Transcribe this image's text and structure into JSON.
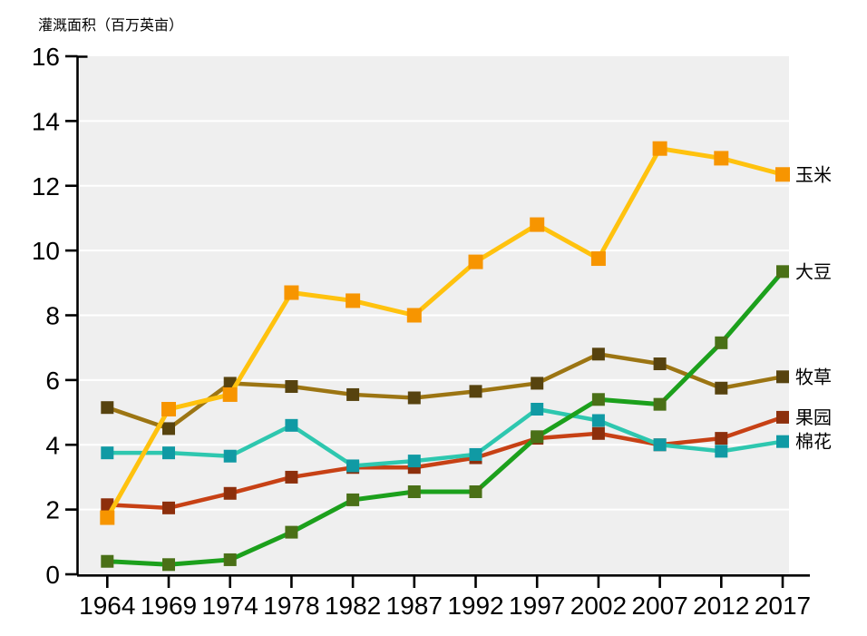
{
  "chart_data": {
    "type": "line",
    "title": "灌溉面积（百万英亩）",
    "xlabel": "",
    "ylabel": "灌溉面积（百万英亩）",
    "x": [
      1964,
      1969,
      1974,
      1978,
      1982,
      1987,
      1992,
      1997,
      2002,
      2007,
      2012,
      2017
    ],
    "ylim": [
      0,
      16
    ],
    "ytick_step": 2,
    "yticks": [
      0,
      2,
      4,
      6,
      8,
      10,
      12,
      14,
      16
    ],
    "grid": "horizontal-white-on-gray",
    "plot_bg": "#EFEFEF",
    "grid_color": "#FFFFFF",
    "axis_color": "#000000",
    "legend_position": "right-end-labels",
    "series": [
      {
        "key": "hay",
        "label": "牧草",
        "line_color": "#9C7513",
        "marker_color": "#57430F",
        "line_width": 4.5,
        "marker_size": 14,
        "values": [
          5.15,
          4.5,
          5.9,
          5.8,
          5.55,
          5.45,
          5.65,
          5.9,
          6.8,
          6.5,
          5.75,
          6.1
        ]
      },
      {
        "key": "orchard",
        "label": "果园",
        "line_color": "#C74115",
        "marker_color": "#8D2F0C",
        "line_width": 4.5,
        "marker_size": 14,
        "values": [
          2.15,
          2.05,
          2.5,
          3.0,
          3.3,
          3.3,
          3.6,
          4.2,
          4.35,
          4.0,
          4.2,
          4.85
        ]
      },
      {
        "key": "cotton",
        "label": "棉花",
        "line_color": "#2EC7AF",
        "marker_color": "#109AA4",
        "line_width": 4.5,
        "marker_size": 14,
        "values": [
          3.75,
          3.75,
          3.65,
          4.6,
          3.35,
          3.5,
          3.7,
          5.1,
          4.75,
          4.0,
          3.8,
          4.1
        ]
      },
      {
        "key": "corn",
        "label": "玉米",
        "line_color": "#FFC20E",
        "marker_color": "#F79500",
        "line_width": 5,
        "marker_size": 16,
        "values": [
          1.75,
          5.1,
          5.55,
          8.7,
          8.45,
          8.0,
          9.65,
          10.8,
          9.75,
          13.15,
          12.85,
          12.35
        ]
      },
      {
        "key": "soybean",
        "label": "大豆",
        "line_color": "#1CA01C",
        "marker_color": "#4A7017",
        "line_width": 5,
        "marker_size": 14,
        "values": [
          0.4,
          0.3,
          0.45,
          1.3,
          2.3,
          2.55,
          2.55,
          4.25,
          5.4,
          5.25,
          7.15,
          9.35
        ]
      }
    ]
  }
}
